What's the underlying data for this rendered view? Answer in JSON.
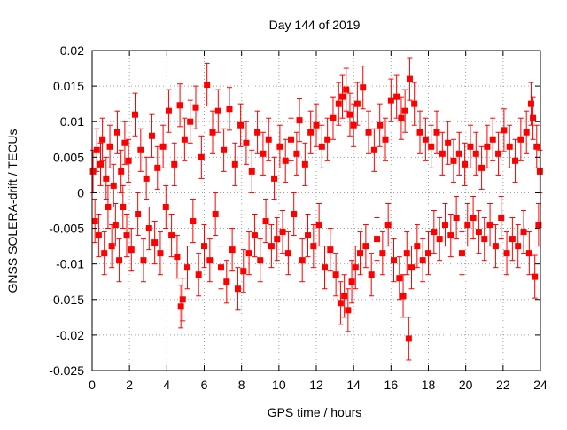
{
  "colors": {
    "series": "#ff0000",
    "grid": "#a0a0a0",
    "axis": "#000000",
    "background": "#ffffff"
  },
  "chart_data": {
    "type": "scatter",
    "title": "Day 144 of 2019",
    "xlabel": "GPS time / hours",
    "ylabel": "GNSS SOLERA-drift / TECUs",
    "xlim": [
      0,
      24
    ],
    "ylim": [
      -0.025,
      0.02
    ],
    "grid": true,
    "xticks": [
      0,
      2,
      4,
      6,
      8,
      10,
      12,
      14,
      16,
      18,
      20,
      22,
      24
    ],
    "xtick_labels": [
      "0",
      "2",
      "4",
      "6",
      "8",
      "10",
      "12",
      "14",
      "16",
      "18",
      "20",
      "22",
      "24"
    ],
    "yticks": [
      -0.025,
      -0.02,
      -0.015,
      -0.01,
      -0.005,
      0,
      0.005,
      0.01,
      0.015,
      0.02
    ],
    "ytick_labels": [
      "-0.025",
      "-0.02",
      "-0.015",
      "-0.01",
      "-0.005",
      "0",
      "0.005",
      "0.01",
      "0.015",
      "0.02"
    ],
    "series": [
      {
        "name": "SOLERA-drift",
        "marker": "square",
        "error_bars": true,
        "typical_error": 0.003,
        "points": [
          {
            "x": 0.05,
            "y": 0.003
          },
          {
            "x": 0.15,
            "y": -0.004
          },
          {
            "x": 0.25,
            "y": 0.006
          },
          {
            "x": 0.35,
            "y": -0.006
          },
          {
            "x": 0.45,
            "y": 0.004
          },
          {
            "x": 0.55,
            "y": 0.0075
          },
          {
            "x": 0.65,
            "y": -0.0085
          },
          {
            "x": 0.75,
            "y": 0.002
          },
          {
            "x": 0.85,
            "y": -0.002
          },
          {
            "x": 0.95,
            "y": 0.0065
          },
          {
            "x": 1.05,
            "y": -0.0075
          },
          {
            "x": 1.15,
            "y": 0.001
          },
          {
            "x": 1.25,
            "y": -0.0045
          },
          {
            "x": 1.35,
            "y": 0.0085
          },
          {
            "x": 1.45,
            "y": -0.0095
          },
          {
            "x": 1.55,
            "y": 0.003
          },
          {
            "x": 1.65,
            "y": -0.002
          },
          {
            "x": 1.75,
            "y": 0.007
          },
          {
            "x": 1.85,
            "y": -0.006
          },
          {
            "x": 1.95,
            "y": 0.0045
          },
          {
            "x": 2.1,
            "y": -0.008
          },
          {
            "x": 2.3,
            "y": 0.011
          },
          {
            "x": 2.45,
            "y": -0.003
          },
          {
            "x": 2.6,
            "y": 0.006
          },
          {
            "x": 2.75,
            "y": -0.0095
          },
          {
            "x": 2.9,
            "y": 0.002
          },
          {
            "x": 3.05,
            "y": -0.005
          },
          {
            "x": 3.2,
            "y": 0.008
          },
          {
            "x": 3.35,
            "y": -0.007
          },
          {
            "x": 3.5,
            "y": 0.0035
          },
          {
            "x": 3.65,
            "y": -0.0085
          },
          {
            "x": 3.8,
            "y": 0.0065
          },
          {
            "x": 3.95,
            "y": -0.002
          },
          {
            "x": 4.1,
            "y": 0.0115
          },
          {
            "x": 4.25,
            "y": -0.006
          },
          {
            "x": 4.4,
            "y": 0.004
          },
          {
            "x": 4.55,
            "y": -0.009
          },
          {
            "x": 4.7,
            "y": 0.0123
          },
          {
            "x": 4.75,
            "y": -0.016
          },
          {
            "x": 4.85,
            "y": -0.015
          },
          {
            "x": 4.95,
            "y": 0.0075
          },
          {
            "x": 5.1,
            "y": -0.0105
          },
          {
            "x": 5.25,
            "y": 0.01
          },
          {
            "x": 5.4,
            "y": -0.004
          },
          {
            "x": 5.55,
            "y": 0.012
          },
          {
            "x": 5.7,
            "y": -0.0115
          },
          {
            "x": 5.85,
            "y": 0.005
          },
          {
            "x": 6.0,
            "y": -0.0075
          },
          {
            "x": 6.15,
            "y": 0.0152
          },
          {
            "x": 6.3,
            "y": -0.0095
          },
          {
            "x": 6.45,
            "y": 0.0085
          },
          {
            "x": 6.6,
            "y": -0.003
          },
          {
            "x": 6.75,
            "y": 0.0115
          },
          {
            "x": 6.9,
            "y": -0.0105
          },
          {
            "x": 7.05,
            "y": 0.006
          },
          {
            "x": 7.2,
            "y": -0.0125
          },
          {
            "x": 7.35,
            "y": 0.0118
          },
          {
            "x": 7.5,
            "y": -0.008
          },
          {
            "x": 7.65,
            "y": 0.004
          },
          {
            "x": 7.8,
            "y": -0.0135
          },
          {
            "x": 7.95,
            "y": 0.0095
          },
          {
            "x": 8.1,
            "y": -0.011
          },
          {
            "x": 8.25,
            "y": 0.007
          },
          {
            "x": 8.4,
            "y": -0.0085
          },
          {
            "x": 8.55,
            "y": 0.003
          },
          {
            "x": 8.7,
            "y": -0.006
          },
          {
            "x": 8.85,
            "y": 0.0085
          },
          {
            "x": 9.0,
            "y": -0.0095
          },
          {
            "x": 9.15,
            "y": 0.0055
          },
          {
            "x": 9.3,
            "y": -0.004
          },
          {
            "x": 9.45,
            "y": 0.0075
          },
          {
            "x": 9.6,
            "y": -0.0075
          },
          {
            "x": 9.75,
            "y": 0.002
          },
          {
            "x": 9.9,
            "y": -0.0065
          },
          {
            "x": 10.05,
            "y": 0.0065
          },
          {
            "x": 10.2,
            "y": -0.0055
          },
          {
            "x": 10.35,
            "y": 0.0045
          },
          {
            "x": 10.5,
            "y": -0.0085
          },
          {
            "x": 10.65,
            "y": 0.0075
          },
          {
            "x": 10.8,
            "y": -0.003
          },
          {
            "x": 10.95,
            "y": 0.0055
          },
          {
            "x": 11.1,
            "y": 0.0102
          },
          {
            "x": 11.25,
            "y": -0.0095
          },
          {
            "x": 11.4,
            "y": 0.004
          },
          {
            "x": 11.55,
            "y": -0.006
          },
          {
            "x": 11.7,
            "y": 0.0085
          },
          {
            "x": 11.85,
            "y": -0.0075
          },
          {
            "x": 12.0,
            "y": 0.0095
          },
          {
            "x": 12.15,
            "y": -0.0045
          },
          {
            "x": 12.3,
            "y": 0.0065
          },
          {
            "x": 12.45,
            "y": -0.0105
          },
          {
            "x": 12.6,
            "y": 0.0075
          },
          {
            "x": 12.75,
            "y": -0.008
          },
          {
            "x": 12.9,
            "y": 0.0105
          },
          {
            "x": 13.05,
            "y": -0.0115
          },
          {
            "x": 13.2,
            "y": 0.0125
          },
          {
            "x": 13.3,
            "y": -0.0155
          },
          {
            "x": 13.4,
            "y": 0.0135
          },
          {
            "x": 13.5,
            "y": -0.0145
          },
          {
            "x": 13.6,
            "y": 0.0145
          },
          {
            "x": 13.7,
            "y": -0.0165
          },
          {
            "x": 13.8,
            "y": 0.011
          },
          {
            "x": 13.9,
            "y": -0.0125
          },
          {
            "x": 14.0,
            "y": 0.0095
          },
          {
            "x": 14.1,
            "y": -0.0105
          },
          {
            "x": 14.2,
            "y": 0.0125
          },
          {
            "x": 14.35,
            "y": -0.0085
          },
          {
            "x": 14.5,
            "y": 0.0148
          },
          {
            "x": 14.65,
            "y": -0.0075
          },
          {
            "x": 14.8,
            "y": 0.0085
          },
          {
            "x": 14.95,
            "y": -0.0115
          },
          {
            "x": 15.1,
            "y": 0.006
          },
          {
            "x": 15.25,
            "y": -0.0065
          },
          {
            "x": 15.4,
            "y": 0.0095
          },
          {
            "x": 15.55,
            "y": -0.0085
          },
          {
            "x": 15.7,
            "y": 0.0075
          },
          {
            "x": 15.85,
            "y": -0.0045
          },
          {
            "x": 16.0,
            "y": 0.013
          },
          {
            "x": 16.15,
            "y": -0.0095
          },
          {
            "x": 16.3,
            "y": 0.0135
          },
          {
            "x": 16.45,
            "y": -0.012
          },
          {
            "x": 16.55,
            "y": 0.0105
          },
          {
            "x": 16.65,
            "y": -0.0145
          },
          {
            "x": 16.75,
            "y": 0.0115
          },
          {
            "x": 16.85,
            "y": -0.0085
          },
          {
            "x": 16.95,
            "y": -0.0205
          },
          {
            "x": 17.0,
            "y": 0.016
          },
          {
            "x": 17.1,
            "y": -0.0105
          },
          {
            "x": 17.25,
            "y": 0.0125
          },
          {
            "x": 17.4,
            "y": -0.0075
          },
          {
            "x": 17.55,
            "y": 0.0085
          },
          {
            "x": 17.7,
            "y": -0.0095
          },
          {
            "x": 17.85,
            "y": 0.0075
          },
          {
            "x": 18.0,
            "y": -0.0085
          },
          {
            "x": 18.15,
            "y": 0.0065
          },
          {
            "x": 18.3,
            "y": -0.0055
          },
          {
            "x": 18.45,
            "y": 0.0085
          },
          {
            "x": 18.6,
            "y": -0.0065
          },
          {
            "x": 18.75,
            "y": 0.0055
          },
          {
            "x": 18.9,
            "y": -0.0045
          },
          {
            "x": 19.05,
            "y": 0.007
          },
          {
            "x": 19.2,
            "y": -0.006
          },
          {
            "x": 19.35,
            "y": 0.0045
          },
          {
            "x": 19.5,
            "y": -0.0035
          },
          {
            "x": 19.65,
            "y": 0.0055
          },
          {
            "x": 19.8,
            "y": -0.0085
          },
          {
            "x": 19.95,
            "y": 0.004
          },
          {
            "x": 20.1,
            "y": -0.0045
          },
          {
            "x": 20.25,
            "y": 0.0065
          },
          {
            "x": 20.4,
            "y": -0.0035
          },
          {
            "x": 20.55,
            "y": 0.0055
          },
          {
            "x": 20.7,
            "y": -0.0055
          },
          {
            "x": 20.85,
            "y": 0.0035
          },
          {
            "x": 21.0,
            "y": -0.0065
          },
          {
            "x": 21.15,
            "y": 0.0065
          },
          {
            "x": 21.3,
            "y": -0.0045
          },
          {
            "x": 21.45,
            "y": 0.0075
          },
          {
            "x": 21.6,
            "y": -0.0075
          },
          {
            "x": 21.75,
            "y": 0.0055
          },
          {
            "x": 21.9,
            "y": -0.0035
          },
          {
            "x": 22.05,
            "y": 0.0088
          },
          {
            "x": 22.2,
            "y": -0.0085
          },
          {
            "x": 22.35,
            "y": 0.0065
          },
          {
            "x": 22.5,
            "y": -0.0065
          },
          {
            "x": 22.65,
            "y": 0.0045
          },
          {
            "x": 22.8,
            "y": -0.0075
          },
          {
            "x": 22.95,
            "y": 0.0075
          },
          {
            "x": 23.1,
            "y": -0.0055
          },
          {
            "x": 23.25,
            "y": 0.0085
          },
          {
            "x": 23.4,
            "y": -0.0085
          },
          {
            "x": 23.5,
            "y": 0.0125
          },
          {
            "x": 23.6,
            "y": 0.0105
          },
          {
            "x": 23.7,
            "y": -0.0118
          },
          {
            "x": 23.8,
            "y": 0.0065
          },
          {
            "x": 23.9,
            "y": -0.0045
          },
          {
            "x": 23.97,
            "y": 0.003
          }
        ]
      }
    ]
  }
}
